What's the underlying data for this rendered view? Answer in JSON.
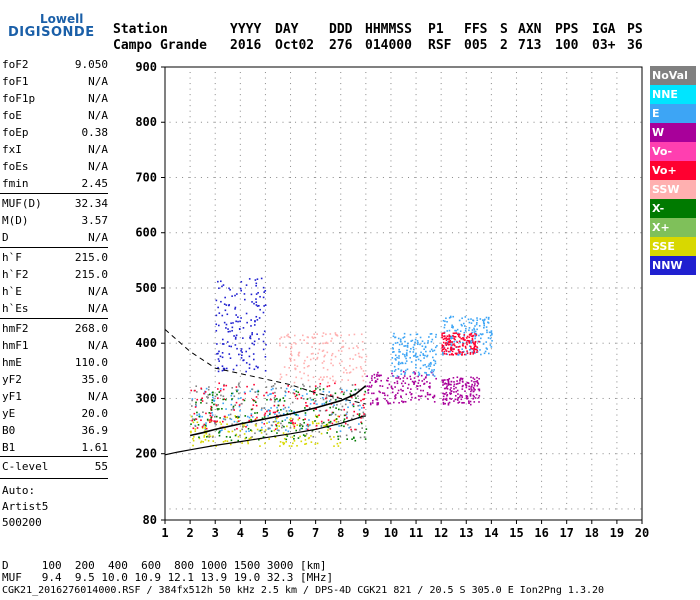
{
  "logo": {
    "top": "Lowell",
    "bottom": "DIGISONDE"
  },
  "header": {
    "columns": [
      {
        "label": "Station",
        "value": "Campo Grande"
      },
      {
        "label": "YYYY",
        "value": "2016"
      },
      {
        "label": "DAY",
        "value": "Oct02"
      },
      {
        "label": "DDD",
        "value": "276"
      },
      {
        "label": "HHMMSS",
        "value": "014000"
      },
      {
        "label": "P1",
        "value": "RSF"
      },
      {
        "label": "FFS",
        "value": "005"
      },
      {
        "label": "S",
        "value": "2"
      },
      {
        "label": "AXN",
        "value": "713"
      },
      {
        "label": "PPS",
        "value": "100"
      },
      {
        "label": "IGA",
        "value": "03+"
      },
      {
        "label": "PS",
        "value": "36"
      }
    ]
  },
  "params": {
    "group1": [
      {
        "key": "foF2",
        "value": "9.050"
      },
      {
        "key": "foF1",
        "value": "N/A"
      },
      {
        "key": "foF1p",
        "value": "N/A"
      },
      {
        "key": "foE",
        "value": "N/A"
      },
      {
        "key": "foEp",
        "value": "0.38"
      },
      {
        "key": "fxI",
        "value": "N/A"
      },
      {
        "key": "foEs",
        "value": "N/A"
      },
      {
        "key": "fmin",
        "value": "2.45"
      }
    ],
    "group2": [
      {
        "key": "MUF(D)",
        "value": "32.34"
      },
      {
        "key": "M(D)",
        "value": "3.57"
      },
      {
        "key": "D",
        "value": "N/A"
      }
    ],
    "group3": [
      {
        "key": "h`F",
        "value": "215.0"
      },
      {
        "key": "h`F2",
        "value": "215.0"
      },
      {
        "key": "h`E",
        "value": "N/A"
      },
      {
        "key": "h`Es",
        "value": "N/A"
      }
    ],
    "group4": [
      {
        "key": "hmF2",
        "value": "268.0"
      },
      {
        "key": "hmF1",
        "value": "N/A"
      },
      {
        "key": "hmE",
        "value": "110.0"
      },
      {
        "key": "yF2",
        "value": "35.0"
      },
      {
        "key": "yF1",
        "value": "N/A"
      },
      {
        "key": "yE",
        "value": "20.0"
      },
      {
        "key": "B0",
        "value": "36.9"
      },
      {
        "key": "B1",
        "value": "1.61"
      }
    ],
    "group5": [
      {
        "key": "C-level",
        "value": "55"
      }
    ],
    "auto": [
      "Auto:",
      "Artist5",
      "500200"
    ]
  },
  "legend": [
    {
      "label": "NoVal",
      "color": "#808080"
    },
    {
      "label": "NNE",
      "color": "#00e5ff"
    },
    {
      "label": "E",
      "color": "#3da5f5"
    },
    {
      "label": "W",
      "color": "#a8009a"
    },
    {
      "label": "Vo-",
      "color": "#ff3fb0"
    },
    {
      "label": "Vo+",
      "color": "#ff0030"
    },
    {
      "label": "SSW",
      "color": "#ffb0b0"
    },
    {
      "label": "X-",
      "color": "#007a00"
    },
    {
      "label": "X+",
      "color": "#7fc05a"
    },
    {
      "label": "SSE",
      "color": "#d8d800"
    },
    {
      "label": "NNW",
      "color": "#2020d0"
    }
  ],
  "footer": {
    "line1": "D     100  200  400  600  800 1000 1500 3000 [km]",
    "line2": "MUF   9.4  9.5 10.0 10.9 12.1 13.9 19.0 32.3 [MHz]",
    "line3": "CGK21_2016276014000.RSF / 384fx512h 50 kHz 2.5 km / DPS-4D CGK21 821 / 20.5 S 305.0 E Ion2Png 1.3.20"
  },
  "chart_data": {
    "type": "scatter",
    "xlim": [
      1,
      20
    ],
    "ylim": [
      80,
      900
    ],
    "x_ticks": [
      "1",
      "2",
      "3",
      "4",
      "5",
      "6",
      "7",
      "8",
      "9",
      "10",
      "11",
      "12",
      "13",
      "14",
      "15",
      "16",
      "17",
      "18",
      "19",
      "20"
    ],
    "y_ticks": [
      "80",
      "200",
      "300",
      "400",
      "500",
      "600",
      "700",
      "800",
      "900"
    ],
    "grid": true,
    "legend_position": "right",
    "trace_bands": [
      {
        "color": "#3da5f5",
        "f": [
          2.0,
          9.0
        ],
        "h": [
          240,
          320
        ]
      },
      {
        "color": "#d8d800",
        "f": [
          2.0,
          8.0
        ],
        "h": [
          215,
          270
        ]
      },
      {
        "color": "#808080",
        "f": [
          2.0,
          9.0
        ],
        "h": [
          230,
          330
        ]
      },
      {
        "color": "#ff0030",
        "f": [
          2.0,
          9.0
        ],
        "h": [
          245,
          330
        ]
      },
      {
        "color": "#007a00",
        "f": [
          2.0,
          9.0
        ],
        "h": [
          225,
          320
        ]
      },
      {
        "color": "#2020d0",
        "f": [
          3.0,
          5.0
        ],
        "h": [
          350,
          520
        ]
      },
      {
        "color": "#ffb0b0",
        "f": [
          5.5,
          9.0
        ],
        "h": [
          330,
          420
        ]
      },
      {
        "color": "#a8009a",
        "f": [
          9.0,
          11.8
        ],
        "h": [
          290,
          350
        ]
      },
      {
        "color": "#3da5f5",
        "f": [
          10.0,
          11.8
        ],
        "h": [
          340,
          420
        ]
      },
      {
        "color": "#a8009a",
        "f": [
          12.0,
          13.5
        ],
        "h": [
          290,
          340
        ]
      },
      {
        "color": "#3da5f5",
        "f": [
          12.0,
          14.0
        ],
        "h": [
          380,
          450
        ]
      },
      {
        "color": "#ff0030",
        "f": [
          12.0,
          13.5
        ],
        "h": [
          380,
          420
        ]
      }
    ],
    "trace_line": {
      "f": [
        2.0,
        2.5,
        3.0,
        4.0,
        5.0,
        6.0,
        7.0,
        8.0,
        8.6,
        9.0
      ],
      "h": [
        233,
        238,
        244,
        254,
        263,
        272,
        283,
        296,
        308,
        323
      ]
    },
    "profile_curve": {
      "f": [
        1.0,
        1.5,
        2.0,
        3.0,
        4.0,
        5.0,
        6.0,
        7.0,
        8.0,
        8.5,
        8.9,
        9.0
      ],
      "h": [
        198,
        203,
        207,
        215,
        222,
        229,
        236,
        244,
        255,
        262,
        268,
        268
      ]
    },
    "dashed_curve": {
      "f": [
        1.0,
        1.5,
        2.0,
        2.5,
        3.0,
        4.0,
        5.0,
        6.0,
        7.0,
        8.0,
        9.0
      ],
      "h": [
        425,
        405,
        385,
        370,
        355,
        345,
        335,
        325,
        310,
        300,
        290
      ]
    }
  }
}
